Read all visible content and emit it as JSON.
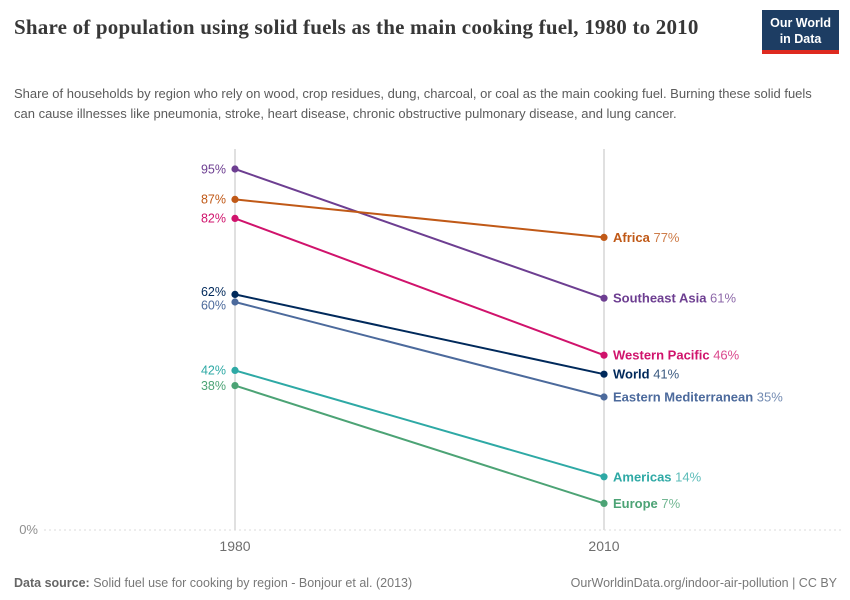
{
  "header": {
    "logo": {
      "line1": "Our World",
      "line2": "in Data",
      "bg_color": "#1D3D63",
      "accent_color": "#DE2A20"
    }
  },
  "chart_data": {
    "type": "line",
    "variant": "slope",
    "title": "Share of population using solid fuels as the main cooking fuel, 1980 to 2010",
    "subtitle": "Share of households by region who rely on wood, crop residues, dung, charcoal, or coal as the main cooking fuel. Burning these solid fuels can cause illnesses like pneumonia, stroke, heart disease, chronic obstructive pulmonary disease, and lung cancer.",
    "x_tick_labels": [
      "1980",
      "2010"
    ],
    "y_baseline_label": "0%",
    "ylim": [
      0,
      100
    ],
    "unit": "%",
    "grid": "vertical-endpoints-plus-dashed-zero-line",
    "legend_position": "end-of-line-labels",
    "series": [
      {
        "name": "Southeast Asia",
        "color": "#6D3E91",
        "values": [
          95,
          61
        ],
        "start_label": "95%",
        "end_label": "61%"
      },
      {
        "name": "Africa",
        "color": "#C05917",
        "values": [
          87,
          77
        ],
        "start_label": "87%",
        "end_label": "77%"
      },
      {
        "name": "Western Pacific",
        "color": "#D0136C",
        "values": [
          82,
          46
        ],
        "start_label": "82%",
        "end_label": "46%"
      },
      {
        "name": "World",
        "color": "#00295B",
        "values": [
          62,
          41
        ],
        "start_label": "62%",
        "end_label": "41%"
      },
      {
        "name": "Eastern Mediterranean",
        "color": "#4C6A9C",
        "values": [
          60,
          35
        ],
        "start_label": "60%",
        "end_label": "35%"
      },
      {
        "name": "Americas",
        "color": "#2EA9A5",
        "values": [
          42,
          14
        ],
        "start_label": "42%",
        "end_label": "14%"
      },
      {
        "name": "Europe",
        "color": "#4CA375",
        "values": [
          38,
          7
        ],
        "start_label": "38%",
        "end_label": "7%"
      }
    ]
  },
  "footer": {
    "datasource_label": "Data source:",
    "datasource_text": " Solid fuel use for cooking by region - Bonjour et al. (2013)",
    "link_text": "OurWorldinData.org/indoor-air-pollution | CC BY"
  }
}
